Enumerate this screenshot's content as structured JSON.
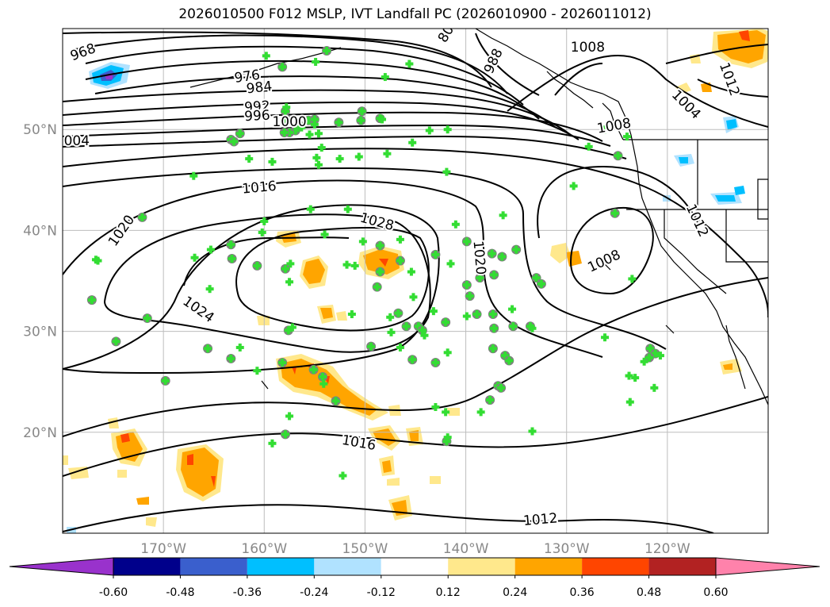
{
  "title": "2026010500 F012 MSLP, IVT Landfall PC (2026010900 - 2026011012)",
  "colors": {
    "isobar": "#000000",
    "grid": "#bdbdbd",
    "coast": "#000000",
    "marker_fill": "#33dd33",
    "marker_ring": "#808080",
    "tick_text": "#888888"
  },
  "map": {
    "lon_range": [
      -180,
      -110
    ],
    "lat_range": [
      10,
      60
    ],
    "lon_ticks": [
      {
        "value": -170,
        "label": "170°W"
      },
      {
        "value": -160,
        "label": "160°W"
      },
      {
        "value": -150,
        "label": "150°W"
      },
      {
        "value": -140,
        "label": "140°W"
      },
      {
        "value": -130,
        "label": "130°W"
      },
      {
        "value": -120,
        "label": "120°W"
      }
    ],
    "lat_ticks": [
      {
        "value": 20,
        "label": "20°N"
      },
      {
        "value": 30,
        "label": "30°N"
      },
      {
        "value": 40,
        "label": "40°N"
      },
      {
        "value": 50,
        "label": "50°N"
      }
    ]
  },
  "isobar_labels": [
    {
      "text": "968",
      "lon": -178,
      "lat": 57.7,
      "rot": -20
    },
    {
      "text": "976",
      "lon": -161.7,
      "lat": 55.3,
      "rot": -8
    },
    {
      "text": "984",
      "lon": -160.5,
      "lat": 54.2,
      "rot": -6
    },
    {
      "text": "992",
      "lon": -160.7,
      "lat": 52.3,
      "rot": -4
    },
    {
      "text": "996",
      "lon": -160.7,
      "lat": 51.4,
      "rot": -3
    },
    {
      "text": "1000",
      "lon": -157.5,
      "lat": 50.8,
      "rot": 0
    },
    {
      "text": "004",
      "lon": -178.6,
      "lat": 48.9,
      "rot": 0
    },
    {
      "text": "1016",
      "lon": -160.5,
      "lat": 44.3,
      "rot": -5
    },
    {
      "text": "1028",
      "lon": -148.8,
      "lat": 40.9,
      "rot": 15
    },
    {
      "text": "1020",
      "lon": -174.2,
      "lat": 40.0,
      "rot": -55
    },
    {
      "text": "1024",
      "lon": -166.5,
      "lat": 32.2,
      "rot": 35
    },
    {
      "text": "1020",
      "lon": -138.6,
      "lat": 37.3,
      "rot": 85
    },
    {
      "text": "1008",
      "lon": -126.3,
      "lat": 37.0,
      "rot": -25
    },
    {
      "text": "988",
      "lon": -137.3,
      "lat": 56.8,
      "rot": -65
    },
    {
      "text": "1008",
      "lon": -127.9,
      "lat": 58.2,
      "rot": 0
    },
    {
      "text": "1004",
      "lon": -118.1,
      "lat": 52.5,
      "rot": 45
    },
    {
      "text": "1008",
      "lon": -125.3,
      "lat": 50.4,
      "rot": -10
    },
    {
      "text": "1012",
      "lon": -113.8,
      "lat": 55.0,
      "rot": 70
    },
    {
      "text": "1012",
      "lon": -117.0,
      "lat": 41.0,
      "rot": 65
    },
    {
      "text": "1016",
      "lon": -150.6,
      "lat": 19.0,
      "rot": 10
    },
    {
      "text": "1012",
      "lon": -132.6,
      "lat": 11.4,
      "rot": -5
    },
    {
      "text": "80",
      "lon": -142.0,
      "lat": 59.5,
      "rot": -60
    }
  ],
  "colorbar": {
    "colors": [
      "#9932cc",
      "#00008b",
      "#3a5fcd",
      "#00bfff",
      "#b0e2ff",
      "#ffffff",
      "#ffe88c",
      "#ffa500",
      "#ff4500",
      "#b22222",
      "#ff82ab"
    ],
    "ticks": [
      "-0.60",
      "-0.48",
      "-0.36",
      "-0.24",
      "-0.12",
      "0.12",
      "0.24",
      "0.36",
      "0.48",
      "0.60"
    ]
  },
  "markers": [
    {
      "lon": -159.8,
      "lat": 57.3,
      "type": "cross"
    },
    {
      "lon": -158.2,
      "lat": 56.2,
      "type": "circle"
    },
    {
      "lon": -154.9,
      "lat": 56.7,
      "type": "cross"
    },
    {
      "lon": -153.8,
      "lat": 57.8,
      "type": "circle"
    },
    {
      "lon": -145.6,
      "lat": 56.5,
      "type": "cross"
    },
    {
      "lon": -148.0,
      "lat": 55.2,
      "type": "cross"
    },
    {
      "lon": -157.9,
      "lat": 51.8,
      "type": "circle"
    },
    {
      "lon": -157.8,
      "lat": 51.0,
      "type": "circle"
    },
    {
      "lon": -157.8,
      "lat": 52.2,
      "type": "cross"
    },
    {
      "lon": -155.6,
      "lat": 50.9,
      "type": "circle"
    },
    {
      "lon": -155.0,
      "lat": 51.0,
      "type": "circle"
    },
    {
      "lon": -155.0,
      "lat": 50.5,
      "type": "cross"
    },
    {
      "lon": -156.6,
      "lat": 50.5,
      "type": "circle"
    },
    {
      "lon": -156.9,
      "lat": 49.9,
      "type": "circle"
    },
    {
      "lon": -156.3,
      "lat": 50.2,
      "type": "cross"
    },
    {
      "lon": -157.5,
      "lat": 49.7,
      "type": "circle"
    },
    {
      "lon": -158.0,
      "lat": 49.7,
      "type": "circle"
    },
    {
      "lon": -155.5,
      "lat": 49.5,
      "type": "cross"
    },
    {
      "lon": -154.6,
      "lat": 49.6,
      "type": "cross"
    },
    {
      "lon": -152.6,
      "lat": 50.7,
      "type": "circle"
    },
    {
      "lon": -150.3,
      "lat": 51.8,
      "type": "circle"
    },
    {
      "lon": -150.4,
      "lat": 50.9,
      "type": "circle"
    },
    {
      "lon": -148.5,
      "lat": 51.1,
      "type": "circle"
    },
    {
      "lon": -148.3,
      "lat": 51.0,
      "type": "cross"
    },
    {
      "lon": -143.6,
      "lat": 49.9,
      "type": "cross"
    },
    {
      "lon": -141.8,
      "lat": 50.0,
      "type": "cross"
    },
    {
      "lon": -162.4,
      "lat": 49.6,
      "type": "circle"
    },
    {
      "lon": -163.3,
      "lat": 49.0,
      "type": "circle"
    },
    {
      "lon": -163.0,
      "lat": 48.8,
      "type": "circle"
    },
    {
      "lon": -161.5,
      "lat": 47.1,
      "type": "cross"
    },
    {
      "lon": -159.2,
      "lat": 46.8,
      "type": "cross"
    },
    {
      "lon": -154.8,
      "lat": 47.2,
      "type": "cross"
    },
    {
      "lon": -154.3,
      "lat": 48.2,
      "type": "cross"
    },
    {
      "lon": -152.5,
      "lat": 47.1,
      "type": "cross"
    },
    {
      "lon": -150.6,
      "lat": 47.3,
      "type": "cross"
    },
    {
      "lon": -147.8,
      "lat": 47.6,
      "type": "cross"
    },
    {
      "lon": -145.3,
      "lat": 48.7,
      "type": "cross"
    },
    {
      "lon": -154.6,
      "lat": 46.5,
      "type": "cross"
    },
    {
      "lon": -141.9,
      "lat": 45.8,
      "type": "cross"
    },
    {
      "lon": -167.0,
      "lat": 45.4,
      "type": "cross"
    },
    {
      "lon": -172.1,
      "lat": 41.3,
      "type": "circle"
    },
    {
      "lon": -155.4,
      "lat": 42.1,
      "type": "cross"
    },
    {
      "lon": -151.7,
      "lat": 42.1,
      "type": "cross"
    },
    {
      "lon": -160.0,
      "lat": 40.9,
      "type": "cross"
    },
    {
      "lon": -160.2,
      "lat": 39.8,
      "type": "cross"
    },
    {
      "lon": -163.3,
      "lat": 38.6,
      "type": "circle"
    },
    {
      "lon": -165.3,
      "lat": 38.1,
      "type": "cross"
    },
    {
      "lon": -163.2,
      "lat": 37.2,
      "type": "circle"
    },
    {
      "lon": -166.9,
      "lat": 37.3,
      "type": "cross"
    },
    {
      "lon": -160.7,
      "lat": 36.5,
      "type": "circle"
    },
    {
      "lon": -157.9,
      "lat": 36.2,
      "type": "circle"
    },
    {
      "lon": -157.4,
      "lat": 36.7,
      "type": "cross"
    },
    {
      "lon": -157.5,
      "lat": 34.9,
      "type": "cross"
    },
    {
      "lon": -154.0,
      "lat": 39.6,
      "type": "cross"
    },
    {
      "lon": -150.2,
      "lat": 38.9,
      "type": "cross"
    },
    {
      "lon": -148.5,
      "lat": 38.5,
      "type": "circle"
    },
    {
      "lon": -146.5,
      "lat": 39.1,
      "type": "cross"
    },
    {
      "lon": -146.5,
      "lat": 37.0,
      "type": "circle"
    },
    {
      "lon": -148.5,
      "lat": 35.9,
      "type": "circle"
    },
    {
      "lon": -148.8,
      "lat": 34.4,
      "type": "circle"
    },
    {
      "lon": -151.8,
      "lat": 36.6,
      "type": "cross"
    },
    {
      "lon": -151.0,
      "lat": 36.5,
      "type": "cross"
    },
    {
      "lon": -145.4,
      "lat": 35.9,
      "type": "cross"
    },
    {
      "lon": -143.0,
      "lat": 37.6,
      "type": "circle"
    },
    {
      "lon": -141.5,
      "lat": 36.7,
      "type": "cross"
    },
    {
      "lon": -145.2,
      "lat": 33.4,
      "type": "cross"
    },
    {
      "lon": -146.7,
      "lat": 31.8,
      "type": "circle"
    },
    {
      "lon": -147.5,
      "lat": 31.4,
      "type": "cross"
    },
    {
      "lon": -143.2,
      "lat": 32.0,
      "type": "cross"
    },
    {
      "lon": -142.0,
      "lat": 30.9,
      "type": "circle"
    },
    {
      "lon": -144.7,
      "lat": 30.5,
      "type": "circle"
    },
    {
      "lon": -144.3,
      "lat": 30.1,
      "type": "circle"
    },
    {
      "lon": -144.1,
      "lat": 29.6,
      "type": "cross"
    },
    {
      "lon": -145.9,
      "lat": 30.5,
      "type": "circle"
    },
    {
      "lon": -147.4,
      "lat": 29.9,
      "type": "cross"
    },
    {
      "lon": -149.4,
      "lat": 28.5,
      "type": "circle"
    },
    {
      "lon": -146.5,
      "lat": 28.4,
      "type": "cross"
    },
    {
      "lon": -145.3,
      "lat": 27.2,
      "type": "circle"
    },
    {
      "lon": -143.0,
      "lat": 26.9,
      "type": "circle"
    },
    {
      "lon": -141.8,
      "lat": 27.9,
      "type": "cross"
    },
    {
      "lon": -151.3,
      "lat": 31.7,
      "type": "cross"
    },
    {
      "lon": -157.6,
      "lat": 30.1,
      "type": "circle"
    },
    {
      "lon": -157.2,
      "lat": 30.4,
      "type": "cross"
    },
    {
      "lon": -141.0,
      "lat": 40.6,
      "type": "cross"
    },
    {
      "lon": -139.9,
      "lat": 38.9,
      "type": "circle"
    },
    {
      "lon": -139.9,
      "lat": 34.6,
      "type": "circle"
    },
    {
      "lon": -139.6,
      "lat": 33.5,
      "type": "circle"
    },
    {
      "lon": -138.6,
      "lat": 35.3,
      "type": "circle"
    },
    {
      "lon": -137.2,
      "lat": 35.6,
      "type": "circle"
    },
    {
      "lon": -137.4,
      "lat": 37.7,
      "type": "circle"
    },
    {
      "lon": -136.4,
      "lat": 37.4,
      "type": "circle"
    },
    {
      "lon": -136.3,
      "lat": 41.5,
      "type": "cross"
    },
    {
      "lon": -135.0,
      "lat": 38.1,
      "type": "circle"
    },
    {
      "lon": -138.9,
      "lat": 31.7,
      "type": "circle"
    },
    {
      "lon": -137.3,
      "lat": 31.7,
      "type": "circle"
    },
    {
      "lon": -139.9,
      "lat": 31.5,
      "type": "cross"
    },
    {
      "lon": -137.2,
      "lat": 30.3,
      "type": "circle"
    },
    {
      "lon": -135.3,
      "lat": 30.5,
      "type": "circle"
    },
    {
      "lon": -135.4,
      "lat": 32.2,
      "type": "cross"
    },
    {
      "lon": -137.3,
      "lat": 28.3,
      "type": "circle"
    },
    {
      "lon": -136.1,
      "lat": 27.6,
      "type": "circle"
    },
    {
      "lon": -135.7,
      "lat": 27.1,
      "type": "circle"
    },
    {
      "lon": -137.6,
      "lat": 23.2,
      "type": "circle"
    },
    {
      "lon": -136.8,
      "lat": 24.6,
      "type": "circle"
    },
    {
      "lon": -136.5,
      "lat": 24.4,
      "type": "circle"
    },
    {
      "lon": -133.6,
      "lat": 30.5,
      "type": "circle"
    },
    {
      "lon": -133.4,
      "lat": 30.3,
      "type": "cross"
    },
    {
      "lon": -133.0,
      "lat": 35.3,
      "type": "circle"
    },
    {
      "lon": -132.5,
      "lat": 34.7,
      "type": "circle"
    },
    {
      "lon": -133.4,
      "lat": 20.1,
      "type": "cross"
    },
    {
      "lon": -138.5,
      "lat": 22.0,
      "type": "cross"
    },
    {
      "lon": -142.0,
      "lat": 22.0,
      "type": "cross"
    },
    {
      "lon": -143.0,
      "lat": 22.5,
      "type": "cross"
    },
    {
      "lon": -141.9,
      "lat": 19.1,
      "type": "circle"
    },
    {
      "lon": -141.8,
      "lat": 19.5,
      "type": "cross"
    },
    {
      "lon": -127.8,
      "lat": 48.3,
      "type": "cross"
    },
    {
      "lon": -126.2,
      "lat": 50.0,
      "type": "cross"
    },
    {
      "lon": -124.9,
      "lat": 47.4,
      "type": "circle"
    },
    {
      "lon": -129.3,
      "lat": 44.4,
      "type": "cross"
    },
    {
      "lon": -124.0,
      "lat": 49.3,
      "type": "cross"
    },
    {
      "lon": -125.2,
      "lat": 41.7,
      "type": "circle"
    },
    {
      "lon": -126.2,
      "lat": 29.4,
      "type": "cross"
    },
    {
      "lon": -123.5,
      "lat": 35.2,
      "type": "cross"
    },
    {
      "lon": -121.7,
      "lat": 28.3,
      "type": "circle"
    },
    {
      "lon": -121.2,
      "lat": 27.8,
      "type": "circle"
    },
    {
      "lon": -121.8,
      "lat": 27.4,
      "type": "circle"
    },
    {
      "lon": -120.7,
      "lat": 27.6,
      "type": "cross"
    },
    {
      "lon": -122.3,
      "lat": 27.0,
      "type": "cross"
    },
    {
      "lon": -123.2,
      "lat": 25.4,
      "type": "cross"
    },
    {
      "lon": -121.3,
      "lat": 24.4,
      "type": "cross"
    },
    {
      "lon": -123.8,
      "lat": 25.6,
      "type": "cross"
    },
    {
      "lon": -123.7,
      "lat": 23.0,
      "type": "cross"
    },
    {
      "lon": -177.1,
      "lat": 33.1,
      "type": "circle"
    },
    {
      "lon": -176.7,
      "lat": 37.1,
      "type": "cross"
    },
    {
      "lon": -176.5,
      "lat": 37.0,
      "type": "cross"
    },
    {
      "lon": -171.6,
      "lat": 31.3,
      "type": "circle"
    },
    {
      "lon": -174.7,
      "lat": 29.0,
      "type": "circle"
    },
    {
      "lon": -169.8,
      "lat": 25.1,
      "type": "circle"
    },
    {
      "lon": -165.6,
      "lat": 28.3,
      "type": "circle"
    },
    {
      "lon": -163.3,
      "lat": 27.3,
      "type": "circle"
    },
    {
      "lon": -162.4,
      "lat": 28.4,
      "type": "cross"
    },
    {
      "lon": -165.4,
      "lat": 34.2,
      "type": "cross"
    },
    {
      "lon": -160.7,
      "lat": 26.1,
      "type": "cross"
    },
    {
      "lon": -158.2,
      "lat": 26.9,
      "type": "circle"
    },
    {
      "lon": -155.1,
      "lat": 26.2,
      "type": "circle"
    },
    {
      "lon": -154.2,
      "lat": 25.5,
      "type": "circle"
    },
    {
      "lon": -154.1,
      "lat": 24.8,
      "type": "cross"
    },
    {
      "lon": -152.9,
      "lat": 23.1,
      "type": "circle"
    },
    {
      "lon": -157.5,
      "lat": 21.6,
      "type": "cross"
    },
    {
      "lon": -157.9,
      "lat": 19.8,
      "type": "circle"
    },
    {
      "lon": -159.2,
      "lat": 18.9,
      "type": "cross"
    },
    {
      "lon": -152.2,
      "lat": 15.7,
      "type": "cross"
    }
  ]
}
